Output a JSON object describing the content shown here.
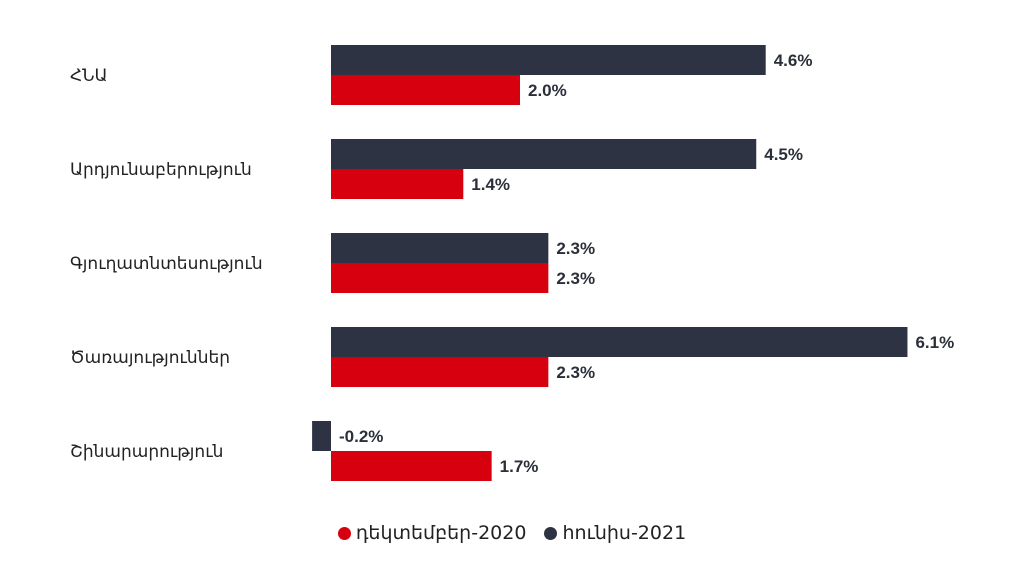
{
  "chart_data": {
    "type": "bar",
    "orientation": "horizontal",
    "categories": [
      "ՀՆԱ",
      "Արդյունաբերություն",
      "Գյուղատնտեսություն",
      "Ծառայություններ",
      "Շինարարություն"
    ],
    "series": [
      {
        "name": "հունիս-2021",
        "values": [
          4.6,
          4.5,
          2.3,
          6.1,
          -0.2
        ],
        "labels": [
          "4.6%",
          "4.5%",
          "2.3%",
          "6.1%",
          "-0.2%"
        ],
        "color": "#2e3344"
      },
      {
        "name": "դեկտեմբեր-2020",
        "values": [
          2.0,
          1.4,
          2.3,
          2.3,
          1.7
        ],
        "labels": [
          "2.0%",
          "1.4%",
          "2.3%",
          "2.3%",
          "1.7%"
        ],
        "color": "#d7000f"
      }
    ],
    "xlim": [
      -0.2,
      6.1
    ],
    "grid": false,
    "legend_position": "bottom"
  },
  "legend": {
    "items": [
      {
        "label": "դեկտեմբեր-2020",
        "color": "#d7000f"
      },
      {
        "label": "հունիս-2021",
        "color": "#2e3344"
      }
    ]
  }
}
